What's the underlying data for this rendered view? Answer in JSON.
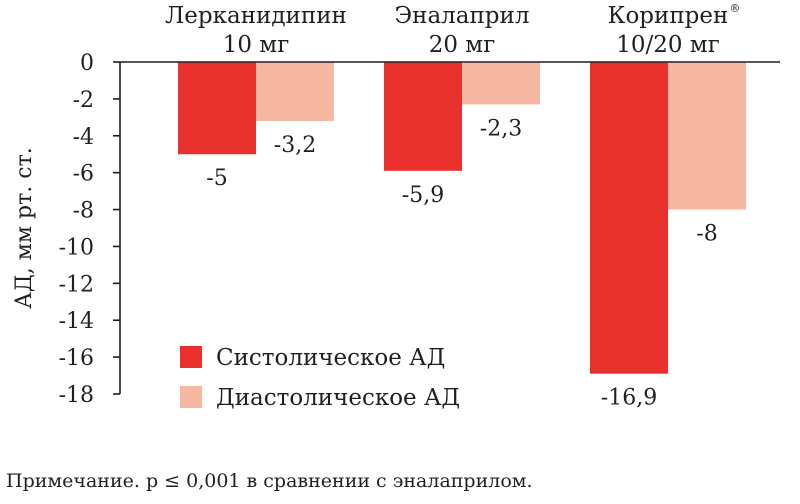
{
  "chart_data": {
    "type": "bar",
    "groups": [
      {
        "label": "Лерканидипин",
        "sublabel": "10 мг",
        "reg": ""
      },
      {
        "label": "Эналаприл",
        "sublabel": "20 мг",
        "reg": ""
      },
      {
        "label": "Корипрен",
        "sublabel": "10/20 мг",
        "reg": "®"
      }
    ],
    "series": [
      {
        "name": "Систолическое АД",
        "color": "#e8302d",
        "values": [
          -5,
          -5.9,
          -16.9
        ],
        "labels": [
          "-5",
          "-5,9",
          "-16,9"
        ]
      },
      {
        "name": "Диастолическое АД",
        "color": "#f7b8a3",
        "values": [
          -3.2,
          -2.3,
          -8
        ],
        "labels": [
          "-3,2",
          "-2,3",
          "-8"
        ]
      }
    ],
    "ylabel": "АД, мм рт. ст.",
    "ylim": [
      -18,
      0
    ],
    "yticks": [
      0,
      -2,
      -4,
      -6,
      -8,
      -10,
      -12,
      -14,
      -16,
      -18
    ],
    "ytick_labels": [
      "0",
      "-2",
      "-4",
      "-6",
      "-8",
      "-10",
      "-12",
      "-14",
      "-16",
      "-18"
    ],
    "legend_position": "bottom-center"
  },
  "note": "Примечание. p ≤ 0,001 в сравнении с эналаприлом."
}
